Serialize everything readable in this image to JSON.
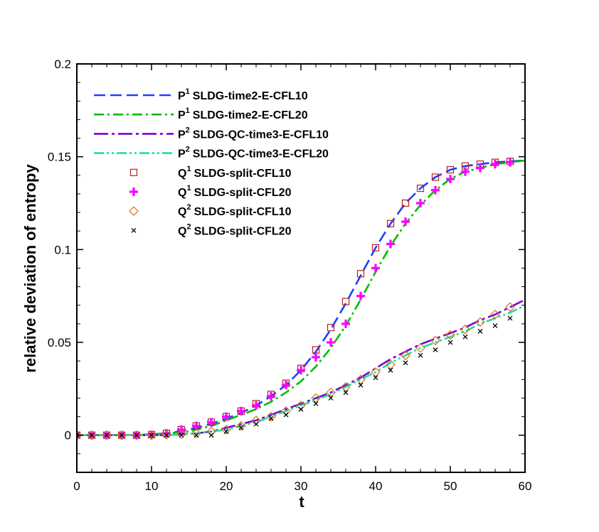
{
  "chart_data": {
    "type": "line",
    "title": "",
    "xlabel": "t",
    "ylabel": "relative deviation of entropy",
    "xlim": [
      0,
      60
    ],
    "ylim": [
      -0.02,
      0.2
    ],
    "xticks": [
      0,
      10,
      20,
      30,
      40,
      50,
      60
    ],
    "xtick_labels": [
      "0",
      "10",
      "20",
      "30",
      "40",
      "50",
      "60"
    ],
    "yticks": [
      0,
      0.05,
      0.1,
      0.15,
      0.2
    ],
    "ytick_labels": [
      "0",
      "0.05",
      "0.1",
      "0.15",
      "0.2"
    ],
    "grid": false,
    "legend_position": "top-left",
    "series": [
      {
        "legend_prefix": "P",
        "legend_sup": "1",
        "legend_suffix": "SLDG-time2-E-CFL10",
        "name": "P1 SLDG-time2-E-CFL10",
        "kind": "line",
        "dash": "dashed",
        "color": "#1f3fff",
        "x": [
          0,
          8,
          12,
          15,
          18,
          20,
          22,
          24,
          26,
          28,
          30,
          32,
          34,
          36,
          38,
          40,
          42,
          44,
          46,
          48,
          50,
          52,
          54,
          56,
          58,
          60
        ],
        "y": [
          0,
          0,
          0.001,
          0.003,
          0.006,
          0.009,
          0.012,
          0.016,
          0.021,
          0.027,
          0.035,
          0.045,
          0.057,
          0.071,
          0.086,
          0.101,
          0.114,
          0.125,
          0.133,
          0.139,
          0.143,
          0.145,
          0.146,
          0.147,
          0.1475,
          0.148
        ]
      },
      {
        "legend_prefix": "P",
        "legend_sup": "1",
        "legend_suffix": "SLDG-time2-E-CFL20",
        "name": "P1 SLDG-time2-E-CFL20",
        "kind": "line",
        "dash": "dashdot",
        "color": "#00bb00",
        "x": [
          0,
          8,
          12,
          15,
          18,
          20,
          22,
          24,
          26,
          28,
          30,
          32,
          34,
          36,
          38,
          40,
          42,
          44,
          46,
          48,
          50,
          52,
          54,
          56,
          58,
          60
        ],
        "y": [
          0,
          0,
          0.001,
          0.002,
          0.005,
          0.008,
          0.011,
          0.014,
          0.018,
          0.023,
          0.029,
          0.037,
          0.047,
          0.059,
          0.073,
          0.088,
          0.102,
          0.114,
          0.124,
          0.132,
          0.138,
          0.142,
          0.144,
          0.146,
          0.147,
          0.148
        ]
      },
      {
        "legend_prefix": "P",
        "legend_sup": "2",
        "legend_suffix": "SLDG-QC-time3-E-CFL10",
        "name": "P2 SLDG-QC-time3-E-CFL10",
        "kind": "line",
        "dash": "longdashdot",
        "color": "#7a00d6",
        "x": [
          0,
          12,
          16,
          18,
          20,
          22,
          24,
          26,
          28,
          30,
          32,
          34,
          36,
          38,
          40,
          42,
          44,
          46,
          48,
          50,
          52,
          54,
          56,
          58,
          60
        ],
        "y": [
          0,
          0,
          0.001,
          0.002,
          0.004,
          0.006,
          0.008,
          0.011,
          0.014,
          0.017,
          0.02,
          0.023,
          0.027,
          0.031,
          0.036,
          0.041,
          0.045,
          0.049,
          0.052,
          0.055,
          0.058,
          0.062,
          0.065,
          0.069,
          0.073
        ]
      },
      {
        "legend_prefix": "P",
        "legend_sup": "2",
        "legend_suffix": "SLDG-QC-time3-E-CFL20",
        "name": "P2 SLDG-QC-time3-E-CFL20",
        "kind": "line",
        "dash": "dashdotdot",
        "color": "#22dd99",
        "x": [
          0,
          12,
          16,
          18,
          20,
          22,
          24,
          26,
          28,
          30,
          32,
          34,
          36,
          38,
          40,
          42,
          44,
          46,
          48,
          50,
          52,
          54,
          56,
          58,
          60
        ],
        "y": [
          0,
          0,
          0.001,
          0.002,
          0.003,
          0.005,
          0.007,
          0.01,
          0.013,
          0.016,
          0.019,
          0.022,
          0.026,
          0.03,
          0.034,
          0.039,
          0.043,
          0.047,
          0.05,
          0.053,
          0.056,
          0.06,
          0.063,
          0.066,
          0.07
        ]
      },
      {
        "legend_prefix": "Q",
        "legend_sup": "1",
        "legend_suffix": "SLDG-split-CFL10",
        "name": "Q1 SLDG-split-CFL10",
        "kind": "marker",
        "marker": "square",
        "color": "#b22222",
        "x": [
          0,
          2,
          4,
          6,
          8,
          10,
          12,
          14,
          16,
          18,
          20,
          22,
          24,
          26,
          28,
          30,
          32,
          34,
          36,
          38,
          40,
          42,
          44,
          46,
          48,
          50,
          52,
          54,
          56,
          58
        ],
        "y": [
          0,
          0,
          0,
          0,
          0,
          0.0003,
          0.001,
          0.003,
          0.005,
          0.007,
          0.01,
          0.013,
          0.017,
          0.022,
          0.028,
          0.036,
          0.046,
          0.058,
          0.072,
          0.087,
          0.101,
          0.114,
          0.125,
          0.133,
          0.139,
          0.143,
          0.145,
          0.146,
          0.147,
          0.1475
        ]
      },
      {
        "legend_prefix": "Q",
        "legend_sup": "1",
        "legend_suffix": "SLDG-split-CFL20",
        "name": "Q1 SLDG-split-CFL20",
        "kind": "marker",
        "marker": "plus",
        "color": "#ff00ff",
        "x": [
          0,
          2,
          4,
          6,
          8,
          10,
          12,
          14,
          16,
          18,
          20,
          22,
          24,
          26,
          28,
          30,
          32,
          34,
          36,
          38,
          40,
          42,
          44,
          46,
          48,
          50,
          52,
          54,
          56,
          58
        ],
        "y": [
          0,
          0,
          0,
          0,
          0,
          0.0003,
          0.001,
          0.003,
          0.005,
          0.007,
          0.01,
          0.013,
          0.016,
          0.021,
          0.027,
          0.035,
          0.042,
          0.05,
          0.06,
          0.075,
          0.09,
          0.103,
          0.115,
          0.125,
          0.132,
          0.138,
          0.142,
          0.144,
          0.146,
          0.147
        ]
      },
      {
        "legend_prefix": "Q",
        "legend_sup": "2",
        "legend_suffix": "SLDG-split-CFL10",
        "name": "Q2 SLDG-split-CFL10",
        "kind": "marker",
        "marker": "diamond",
        "color": "#cc7722",
        "x": [
          0,
          2,
          4,
          6,
          8,
          10,
          12,
          14,
          16,
          18,
          20,
          22,
          24,
          26,
          28,
          30,
          32,
          34,
          36,
          38,
          40,
          42,
          44,
          46,
          48,
          50,
          52,
          54,
          56,
          58
        ],
        "y": [
          0,
          0,
          0,
          0,
          0,
          0,
          0.0002,
          0.0005,
          0.001,
          0.002,
          0.003,
          0.005,
          0.008,
          0.01,
          0.013,
          0.016,
          0.02,
          0.023,
          0.026,
          0.03,
          0.034,
          0.038,
          0.043,
          0.047,
          0.051,
          0.054,
          0.057,
          0.061,
          0.065,
          0.069
        ]
      },
      {
        "legend_prefix": "Q",
        "legend_sup": "2",
        "legend_suffix": "SLDG-split-CFL20",
        "name": "Q2 SLDG-split-CFL20",
        "kind": "marker",
        "marker": "x",
        "color": "#000000",
        "x": [
          0,
          2,
          4,
          6,
          8,
          10,
          12,
          14,
          16,
          18,
          20,
          22,
          24,
          26,
          28,
          30,
          32,
          34,
          36,
          38,
          40,
          42,
          44,
          46,
          48,
          50,
          52,
          54,
          56,
          58
        ],
        "y": [
          0,
          0,
          0,
          0,
          0,
          0,
          0,
          0,
          0,
          0,
          0.002,
          0.004,
          0.006,
          0.009,
          0.011,
          0.014,
          0.017,
          0.02,
          0.023,
          0.027,
          0.031,
          0.035,
          0.039,
          0.043,
          0.046,
          0.05,
          0.053,
          0.056,
          0.059,
          0.063
        ]
      }
    ]
  }
}
